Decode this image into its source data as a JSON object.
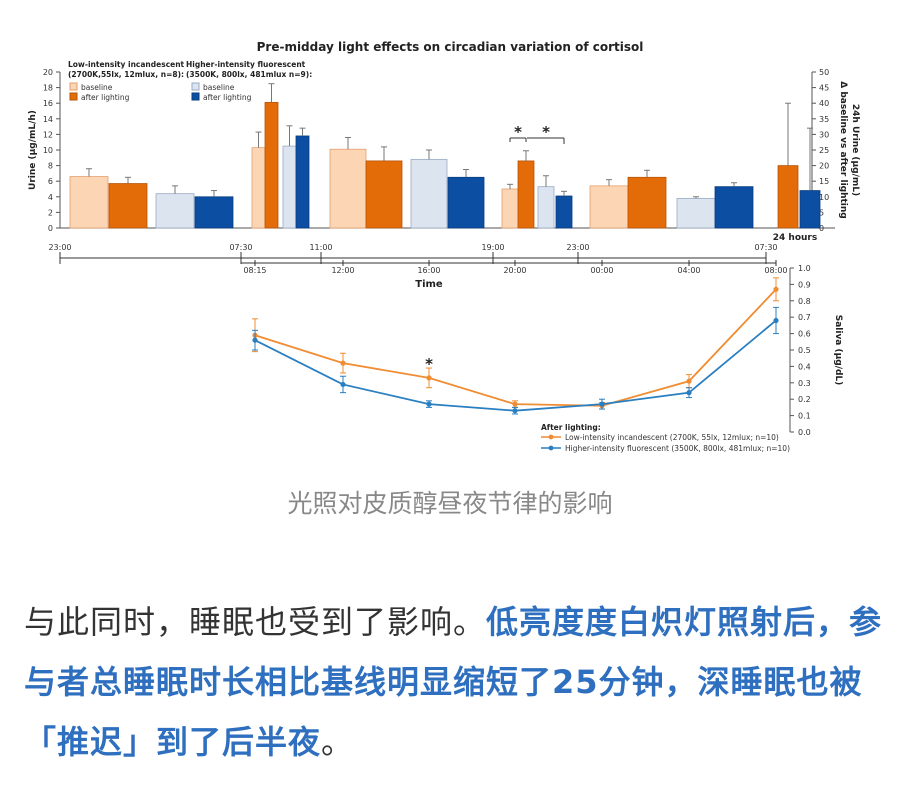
{
  "chart_data": [
    {
      "type": "bar",
      "title": "Pre-midday light effects on circadian variation of cortisol",
      "ylabel_left": "Urine (µg/mL/h)",
      "ylabel_right": "24h Urine (µg/mL) Δ baseline vs after lighting",
      "ylim_left": [
        0,
        20
      ],
      "yticks_left": [
        "0",
        "2",
        "4",
        "6",
        "8",
        "10",
        "12",
        "14",
        "16",
        "18",
        "20"
      ],
      "ylim_right": [
        0,
        50
      ],
      "yticks_right": [
        "0",
        "5",
        "10",
        "15",
        "20",
        "25",
        "30",
        "35",
        "40",
        "45",
        "50"
      ],
      "legend": {
        "group1_title": "Low-intensity incandescent",
        "group1_sub": "(2700K,55lx, 12mlux, n=8):",
        "group2_title": "Higher-intensity fluorescent",
        "group2_sub": "(3500K, 800lx, 481mlux n=9):",
        "baseline": "baseline",
        "after": "after lighting"
      },
      "colors": {
        "low_baseline": "#fcd5b4",
        "low_after": "#e36c09",
        "high_baseline": "#dce4ef",
        "high_after": "#0b4ea2"
      },
      "top_axis_ticks": [
        "23:00",
        "07:30",
        "11:00",
        "19:00",
        "23:00",
        "07:30"
      ],
      "bottom_axis_ticks": [
        "08:15",
        "12:00",
        "16:00",
        "20:00",
        "00:00",
        "04:00",
        "08:00"
      ],
      "xlabel": "Time",
      "right_panel_label": "24 hours",
      "significance": [
        "*",
        "*"
      ],
      "groups": [
        {
          "low_baseline": 6.6,
          "low_after": 5.7,
          "high_baseline": 4.4,
          "high_after": 4.0
        },
        {
          "low_baseline": 10.3,
          "low_after": 16.1,
          "high_baseline": 10.5,
          "high_after": 11.8
        },
        {
          "low_baseline": 10.1,
          "low_after": 8.6,
          "high_baseline": 8.8,
          "high_after": 6.5
        },
        {
          "low_baseline": 5.0,
          "low_after": 8.6,
          "high_baseline": 5.3,
          "high_after": 4.1
        },
        {
          "low_baseline": 5.4,
          "low_after": 6.5,
          "high_baseline": 3.8,
          "high_after": 5.3
        }
      ],
      "errors": [
        {
          "low_baseline": 1.0,
          "low_after": 0.8,
          "high_baseline": 1.0,
          "high_after": 0.8
        },
        {
          "low_baseline": 2.0,
          "low_after": 2.4,
          "high_baseline": 2.6,
          "high_after": 1.0
        },
        {
          "low_baseline": 1.5,
          "low_after": 1.8,
          "high_baseline": 1.2,
          "high_after": 1.0
        },
        {
          "low_baseline": 0.6,
          "low_after": 1.3,
          "high_baseline": 1.4,
          "high_after": 0.6
        },
        {
          "low_baseline": 0.8,
          "low_after": 0.9,
          "high_baseline": 0.2,
          "high_after": 0.5
        }
      ],
      "daily_24h": {
        "low_after": 20,
        "high_after": 12,
        "low_err": 20,
        "high_err": 20
      }
    },
    {
      "type": "line",
      "ylabel": "Saliva (µg/dL)",
      "ylim": [
        0,
        1.0
      ],
      "yticks": [
        "0.0",
        "0.1",
        "0.2",
        "0.3",
        "0.4",
        "0.5",
        "0.6",
        "0.7",
        "0.8",
        "0.9",
        "1.0"
      ],
      "x": [
        "08:15",
        "12:00",
        "16:00",
        "20:00",
        "00:00",
        "04:00",
        "08:00"
      ],
      "legend_title": "After lighting:",
      "significance": "*",
      "series": [
        {
          "name": "Low-intensity incandescent  (2700K, 55lx, 12mlux; n=10)",
          "color": "#f08c32",
          "values": [
            0.59,
            0.42,
            0.33,
            0.17,
            0.16,
            0.31,
            0.87
          ],
          "errors": [
            0.1,
            0.06,
            0.06,
            0.02,
            0.02,
            0.04,
            0.07
          ]
        },
        {
          "name": "Higher-intensity fluorescent (3500K, 800lx, 481mlux; n=10)",
          "color": "#2a7fc1",
          "values": [
            0.56,
            0.29,
            0.17,
            0.13,
            0.17,
            0.24,
            0.68
          ],
          "errors": [
            0.06,
            0.05,
            0.02,
            0.02,
            0.03,
            0.03,
            0.08
          ]
        }
      ]
    }
  ],
  "caption": "光照对皮质醇昼夜节律的影响",
  "article": {
    "normal": "与此同时，睡眠也受到了影响。",
    "highlight": "低亮度度白炽灯照射后，参与者总睡眠时长相比基线明显缩短了25分钟，深睡眠也被「推迟」到了后半夜",
    "tail": "。"
  }
}
